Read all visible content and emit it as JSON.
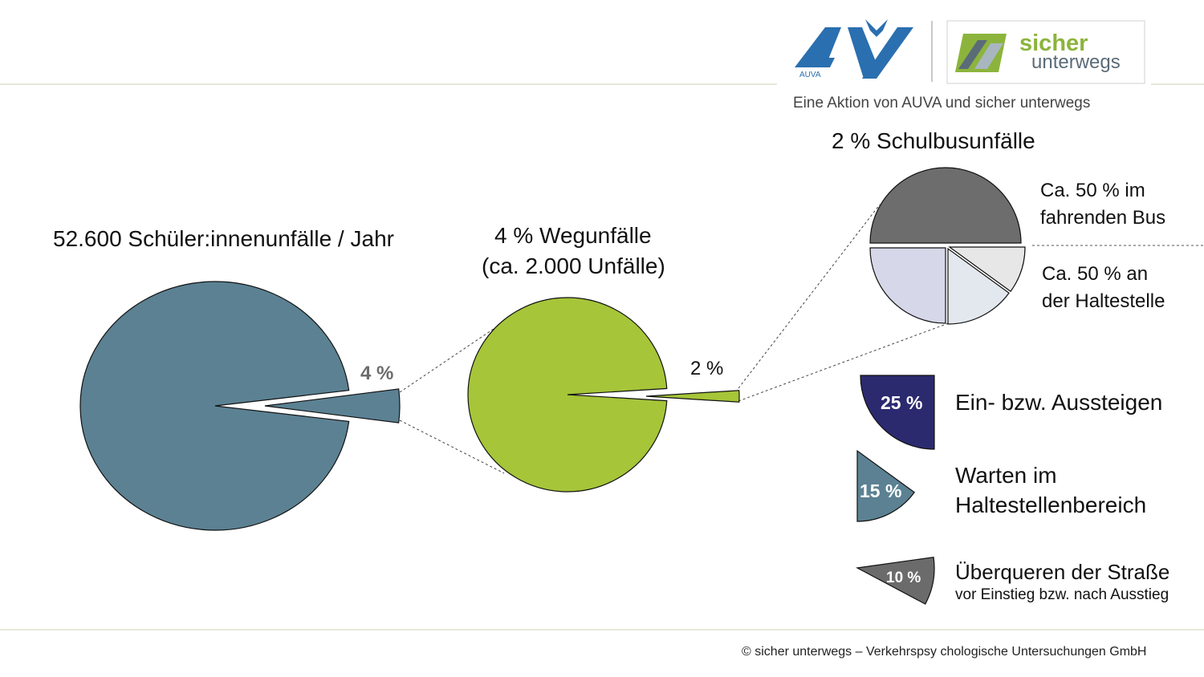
{
  "logo": {
    "caption": "Eine Aktion von AUVA und sicher unterwegs",
    "auva_text": "AUVA",
    "sicher_text": "sicher",
    "unterwegs_text": "unterwegs"
  },
  "chart_data": [
    {
      "type": "pie",
      "title": "52.600 Schüler:innenunfälle / Jahr",
      "slices": [
        {
          "label": "",
          "value": 96
        },
        {
          "label": "4 %",
          "value": 4,
          "exploded": true
        }
      ],
      "colors": {
        "main": "#5b8193",
        "highlight": "#5b8193"
      }
    },
    {
      "type": "pie",
      "title": "4 % Wegunfälle",
      "subtitle": "(ca. 2.000 Unfälle)",
      "slices": [
        {
          "label": "",
          "value": 98
        },
        {
          "label": "2 %",
          "value": 2,
          "exploded": true
        }
      ],
      "colors": {
        "main": "#a6c539",
        "highlight": "#a6c539"
      }
    },
    {
      "type": "pie",
      "title": "2 % Schulbusunfälle",
      "slices": [
        {
          "label": "Ca. 50 % im fahrenden Bus",
          "value": 50
        },
        {
          "label": "Ein- bzw. Aussteigen",
          "value": 25
        },
        {
          "label": "Warten im Haltestellenbereich",
          "value": 15
        },
        {
          "label": "Überqueren der Straße",
          "value": 10
        }
      ],
      "annotations": [
        {
          "line1": "Ca. 50 % im",
          "line2": "fahrenden Bus"
        },
        {
          "line1": "Ca. 50 % an",
          "line2": "der Haltestelle"
        }
      ],
      "colors": [
        "#6d6d6d",
        "#d6d7e8",
        "#e3e8ee",
        "#e7e7e7"
      ]
    },
    {
      "type": "pie",
      "title": "",
      "legend_wedges": [
        {
          "pct_label": "25 %",
          "value": 25,
          "text_line1": "Ein- bzw. Aussteigen",
          "text_line2": "",
          "color": "#2b2a6f"
        },
        {
          "pct_label": "15 %",
          "value": 15,
          "text_line1": "Warten im",
          "text_line2": "Haltestellenbereich",
          "color": "#5b8193"
        },
        {
          "pct_label": "10 %",
          "value": 10,
          "text_line1": "Überqueren der Straße",
          "text_line2": "vor Einstieg bzw. nach Ausstieg",
          "color": "#6b6b6b"
        }
      ]
    }
  ],
  "footer": "© sicher unterwegs – Verkehrspsy chologische Untersuchungen GmbH"
}
